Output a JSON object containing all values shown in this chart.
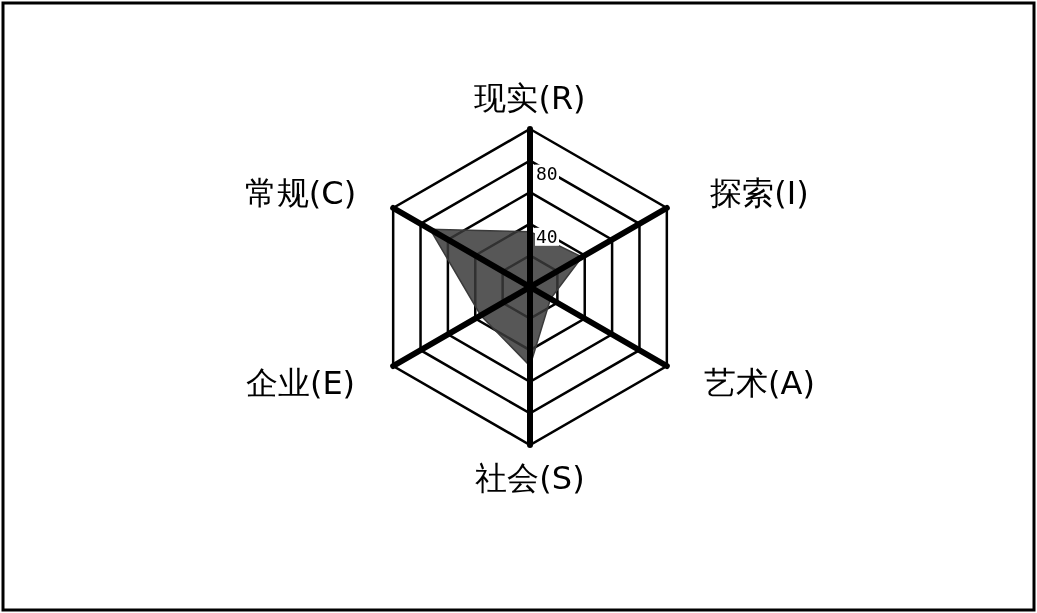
{
  "chart_data": {
    "type": "radar",
    "categories": [
      "现实(R)",
      "探索(I)",
      "艺术(A)",
      "社会(S)",
      "企业(E)",
      "常规(C)"
    ],
    "series": [
      {
        "color": "#3a3a3a",
        "values": [
          35,
          38,
          15,
          50,
          36,
          73
        ]
      }
    ],
    "ylim": [
      0,
      100
    ],
    "yticks": [
      40,
      80
    ],
    "grid": true
  }
}
